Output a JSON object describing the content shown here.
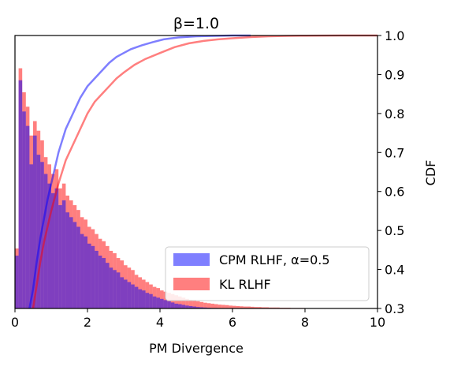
{
  "chart_data": {
    "type": "bar",
    "title": "β=1.0",
    "xlabel": "PM Divergence",
    "ylabel": "",
    "y2label": "CDF",
    "xlim": [
      0,
      10
    ],
    "y2lim": [
      0.3,
      1.0
    ],
    "xticks": [
      "0",
      "2",
      "4",
      "6",
      "8",
      "10"
    ],
    "y2ticks": [
      "0.3",
      "0.4",
      "0.5",
      "0.6",
      "0.7",
      "0.8",
      "0.9",
      "1.0"
    ],
    "legend_position": "lower-right",
    "histogram_series": [
      {
        "name": "CPM RLHF, α=0.5",
        "color": "#0000ff",
        "bin_width": 0.1,
        "relative_heights": [
          0.22,
          0.95,
          0.82,
          0.76,
          0.6,
          0.72,
          0.64,
          0.61,
          0.56,
          0.52,
          0.48,
          0.5,
          0.43,
          0.45,
          0.4,
          0.38,
          0.36,
          0.34,
          0.31,
          0.3,
          0.27,
          0.26,
          0.24,
          0.22,
          0.21,
          0.19,
          0.17,
          0.16,
          0.15,
          0.13,
          0.12,
          0.11,
          0.1,
          0.09,
          0.08,
          0.075,
          0.065,
          0.06,
          0.05,
          0.045,
          0.04,
          0.035,
          0.03,
          0.025,
          0.02,
          0.018,
          0.015,
          0.012,
          0.01,
          0.008,
          0.006,
          0.005,
          0.004,
          0.003,
          0.002,
          0.002,
          0.0015,
          0.001,
          0.001,
          0.001,
          0.0005,
          0.0005,
          0.0005,
          0.0005,
          0.0005
        ]
      },
      {
        "name": "KL RLHF",
        "color": "#ff0000",
        "bin_width": 0.1,
        "relative_heights": [
          0.25,
          1.0,
          0.9,
          0.84,
          0.72,
          0.78,
          0.74,
          0.7,
          0.63,
          0.6,
          0.56,
          0.58,
          0.5,
          0.52,
          0.47,
          0.45,
          0.43,
          0.41,
          0.38,
          0.37,
          0.34,
          0.33,
          0.31,
          0.29,
          0.28,
          0.26,
          0.24,
          0.23,
          0.21,
          0.2,
          0.18,
          0.17,
          0.16,
          0.14,
          0.13,
          0.12,
          0.11,
          0.1,
          0.09,
          0.085,
          0.075,
          0.07,
          0.065,
          0.06,
          0.055,
          0.05,
          0.045,
          0.04,
          0.036,
          0.032,
          0.03,
          0.027,
          0.024,
          0.022,
          0.02,
          0.018,
          0.016,
          0.015,
          0.014,
          0.012,
          0.011,
          0.01,
          0.009,
          0.008,
          0.008,
          0.007,
          0.006,
          0.006,
          0.005,
          0.005,
          0.004,
          0.004,
          0.004,
          0.003,
          0.003,
          0.003,
          0.002,
          0.002,
          0.002,
          0.002,
          0.0015,
          0.0015,
          0.0015,
          0.001,
          0.001,
          0.001,
          0.001,
          0.001,
          0.001,
          0.001,
          0.001,
          0.001,
          0.001,
          0.001,
          0.001,
          0.001,
          0.001,
          0.001,
          0.001,
          0.001
        ]
      }
    ],
    "cdf_series": [
      {
        "name": "CPM RLHF, α=0.5",
        "color": "#0000ff",
        "x": [
          0.4,
          0.5,
          0.6,
          0.7,
          0.8,
          0.9,
          1.0,
          1.1,
          1.2,
          1.4,
          1.6,
          1.8,
          2.0,
          2.2,
          2.4,
          2.6,
          2.8,
          3.0,
          3.2,
          3.5,
          3.8,
          4.1,
          4.5,
          5.0,
          5.5,
          6.0,
          6.5
        ],
        "y": [
          0.3,
          0.35,
          0.42,
          0.48,
          0.53,
          0.58,
          0.62,
          0.66,
          0.7,
          0.76,
          0.8,
          0.84,
          0.87,
          0.89,
          0.91,
          0.93,
          0.945,
          0.955,
          0.965,
          0.975,
          0.983,
          0.99,
          0.995,
          0.998,
          0.999,
          1.0,
          1.0
        ]
      },
      {
        "name": "KL RLHF",
        "color": "#ff0000",
        "x": [
          0.5,
          0.6,
          0.7,
          0.8,
          0.9,
          1.0,
          1.2,
          1.4,
          1.6,
          1.8,
          2.0,
          2.2,
          2.4,
          2.6,
          2.8,
          3.0,
          3.3,
          3.6,
          4.0,
          4.4,
          4.8,
          5.2,
          5.6,
          6.0,
          6.5,
          7.0,
          7.5,
          8.0,
          9.0,
          10.0
        ],
        "y": [
          0.3,
          0.36,
          0.42,
          0.47,
          0.51,
          0.55,
          0.62,
          0.68,
          0.72,
          0.76,
          0.8,
          0.83,
          0.85,
          0.87,
          0.89,
          0.905,
          0.925,
          0.94,
          0.955,
          0.97,
          0.98,
          0.986,
          0.99,
          0.993,
          0.996,
          0.998,
          0.999,
          0.9995,
          1.0,
          1.0
        ]
      }
    ]
  }
}
